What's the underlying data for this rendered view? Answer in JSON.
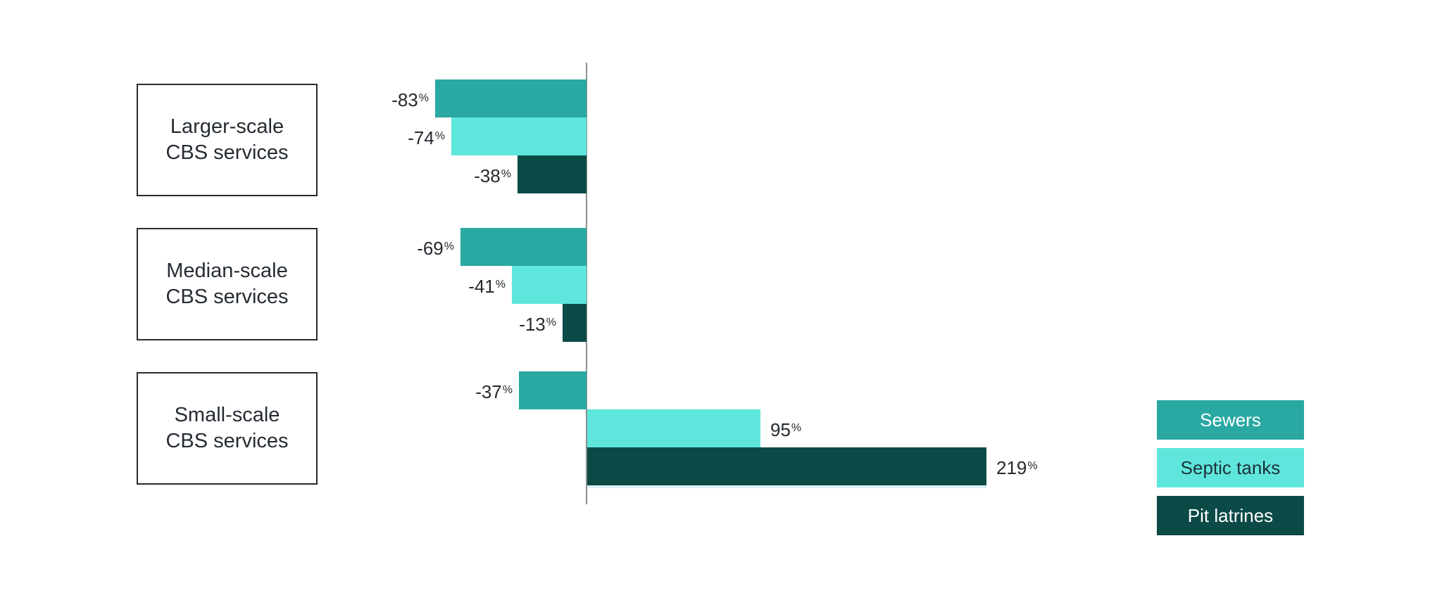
{
  "chart_data": {
    "type": "bar",
    "orientation": "horizontal",
    "title": "",
    "value_suffix": "%",
    "categories": [
      {
        "line1": "Larger-scale",
        "line2": "CBS services"
      },
      {
        "line1": "Median-scale",
        "line2": "CBS services"
      },
      {
        "line1": "Small-scale",
        "line2": "CBS services"
      }
    ],
    "series": [
      {
        "name": "Sewers",
        "color": "#2aa8a2",
        "label_color": "#ffffff",
        "values": [
          -83,
          -69,
          -37
        ]
      },
      {
        "name": "Septic tanks",
        "color": "#5fe6dc",
        "label_color": "#1d3038",
        "values": [
          -74,
          -41,
          95
        ]
      },
      {
        "name": "Pit latrines",
        "color": "#0c4a47",
        "label_color": "#ffffff",
        "values": [
          -38,
          -13,
          219
        ]
      }
    ],
    "axis": {
      "zero_line": true,
      "gridlines": false,
      "x_range_pct": [
        -90,
        240
      ]
    },
    "legend_position": "right",
    "value_label_color": "#24292e"
  }
}
